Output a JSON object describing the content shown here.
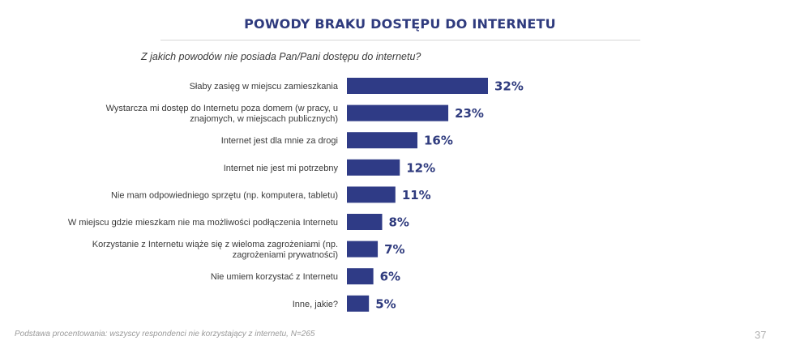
{
  "title": "POWODY BRAKU DOSTĘPU DO INTERNETU",
  "question": "Z jakich powodów nie posiada Pan/Pani dostępu do internetu?",
  "footer": "Podstawa procentowania: wszyscy respondenci nie korzystający z internetu, N=265",
  "page_number": "37",
  "colors": {
    "bar": "#2f3b86",
    "value_label": "#2f3b7e",
    "title": "#2f3b7e"
  },
  "chart_data": {
    "type": "bar",
    "orientation": "horizontal",
    "categories": [
      "Słaby zasięg w miejscu zamieszkania",
      "Wystarcza mi dostęp do Internetu poza domem (w pracy, u znajomych, w miejscach publicznych)",
      "Internet jest dla mnie za drogi",
      "Internet nie jest mi potrzebny",
      "Nie mam odpowiedniego sprzętu (np. komputera, tabletu)",
      "W miejscu gdzie mieszkam nie ma możliwości podłączenia Internetu",
      "Korzystanie z Internetu wiąże się z wieloma zagrożeniami (np. zagrożeniami prywatności)",
      "Nie umiem korzystać z Internetu",
      "Inne, jakie?"
    ],
    "category_lines": [
      [
        "Słaby zasięg w miejscu zamieszkania"
      ],
      [
        "Wystarcza mi dostęp do Internetu poza domem (w pracy, u",
        "znajomych, w miejscach publicznych)"
      ],
      [
        "Internet jest dla mnie za drogi"
      ],
      [
        "Internet nie jest mi potrzebny"
      ],
      [
        "Nie mam odpowiedniego sprzętu (np. komputera, tabletu)"
      ],
      [
        "W miejscu gdzie mieszkam nie ma możliwości podłączenia Internetu"
      ],
      [
        "Korzystanie z Internetu wiąże się z wieloma zagrożeniami (np.",
        "zagrożeniami prywatności)"
      ],
      [
        "Nie umiem korzystać z Internetu"
      ],
      [
        "Inne, jakie?"
      ]
    ],
    "values": [
      32,
      23,
      16,
      12,
      11,
      8,
      7,
      6,
      5
    ],
    "value_labels": [
      "32%",
      "23%",
      "16%",
      "12%",
      "11%",
      "8%",
      "7%",
      "6%",
      "5%"
    ],
    "unit": "%",
    "xlim": [
      0,
      32
    ],
    "grid": false,
    "legend": "none"
  }
}
